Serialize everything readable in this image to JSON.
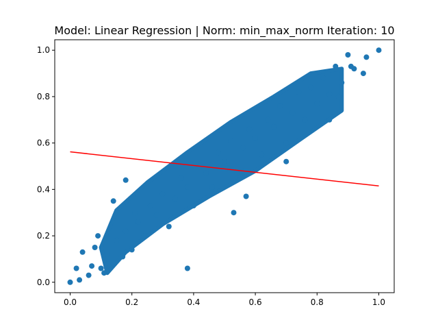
{
  "chart_data": {
    "type": "scatter",
    "title": "Model: Linear Regression | Norm: min_max_norm  Iteration: 10",
    "xlabel": "",
    "ylabel": "",
    "xlim": [
      -0.05,
      1.05
    ],
    "ylim": [
      -0.045,
      1.045
    ],
    "x_ticks": [
      "0.0",
      "0.2",
      "0.4",
      "0.6",
      "0.8",
      "1.0"
    ],
    "y_ticks": [
      "0.0",
      "0.2",
      "0.4",
      "0.6",
      "0.8",
      "1.0"
    ],
    "grid": false,
    "legend": "none",
    "colors": {
      "points": "#1f77b4",
      "line": "#ff0000"
    },
    "series": [
      {
        "type": "scatter",
        "points": [
          [
            0.0,
            0.0
          ],
          [
            0.03,
            0.01
          ],
          [
            0.02,
            0.06
          ],
          [
            0.04,
            0.13
          ],
          [
            0.06,
            0.03
          ],
          [
            0.07,
            0.07
          ],
          [
            0.08,
            0.15
          ],
          [
            0.09,
            0.2
          ],
          [
            0.1,
            0.06
          ],
          [
            0.11,
            0.04
          ],
          [
            0.12,
            0.12
          ],
          [
            0.14,
            0.08
          ],
          [
            0.15,
            0.18
          ],
          [
            0.17,
            0.11
          ],
          [
            0.18,
            0.22
          ],
          [
            0.2,
            0.14
          ],
          [
            0.21,
            0.3
          ],
          [
            0.22,
            0.26
          ],
          [
            0.24,
            0.2
          ],
          [
            0.26,
            0.33
          ],
          [
            0.28,
            0.29
          ],
          [
            0.3,
            0.38
          ],
          [
            0.32,
            0.24
          ],
          [
            0.34,
            0.36
          ],
          [
            0.36,
            0.45
          ],
          [
            0.38,
            0.41
          ],
          [
            0.4,
            0.33
          ],
          [
            0.42,
            0.5
          ],
          [
            0.44,
            0.47
          ],
          [
            0.46,
            0.41
          ],
          [
            0.48,
            0.56
          ],
          [
            0.5,
            0.52
          ],
          [
            0.52,
            0.61
          ],
          [
            0.54,
            0.47
          ],
          [
            0.56,
            0.58
          ],
          [
            0.58,
            0.66
          ],
          [
            0.6,
            0.62
          ],
          [
            0.62,
            0.55
          ],
          [
            0.64,
            0.7
          ],
          [
            0.66,
            0.67
          ],
          [
            0.68,
            0.76
          ],
          [
            0.7,
            0.6
          ],
          [
            0.72,
            0.73
          ],
          [
            0.74,
            0.82
          ],
          [
            0.76,
            0.7
          ],
          [
            0.78,
            0.84
          ],
          [
            0.8,
            0.77
          ],
          [
            0.82,
            0.88
          ],
          [
            0.84,
            0.81
          ],
          [
            0.86,
            0.93
          ],
          [
            0.88,
            0.86
          ],
          [
            0.9,
            0.98
          ],
          [
            0.92,
            0.92
          ],
          [
            0.95,
            0.9
          ],
          [
            0.96,
            0.97
          ],
          [
            1.0,
            1.0
          ],
          [
            0.18,
            0.44
          ],
          [
            0.14,
            0.35
          ],
          [
            0.38,
            0.06
          ],
          [
            0.53,
            0.3
          ],
          [
            0.7,
            0.52
          ],
          [
            0.87,
            0.8
          ],
          [
            0.91,
            0.93
          ],
          [
            0.84,
            0.7
          ],
          [
            0.57,
            0.37
          ]
        ]
      },
      {
        "type": "line",
        "points": [
          [
            0.0,
            0.562
          ],
          [
            1.0,
            0.415
          ]
        ]
      }
    ]
  }
}
